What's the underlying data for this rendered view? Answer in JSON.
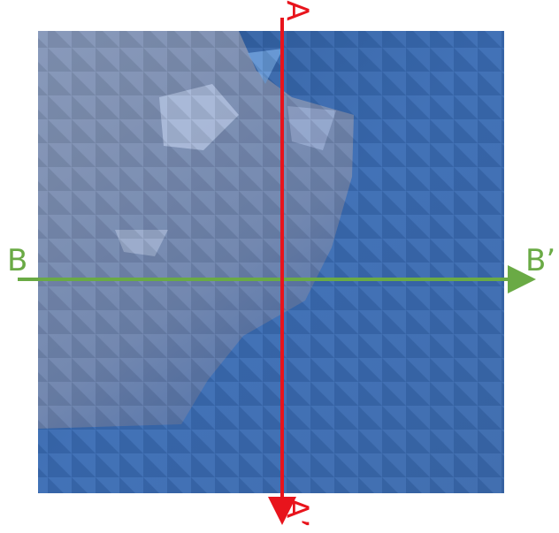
{
  "labels": {
    "a": "A",
    "a_prime": "A’",
    "b": "B",
    "b_prime": "B’"
  }
}
